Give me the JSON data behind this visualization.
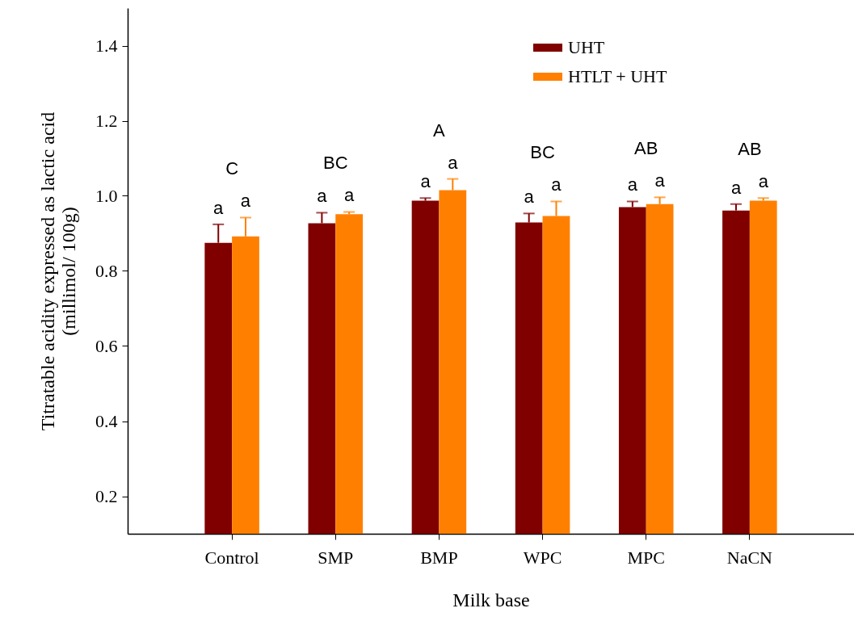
{
  "chart_data": {
    "type": "bar",
    "xlabel": "Milk base",
    "ylabel": "Titratable acidity expressed as lactic acid\n(millimol/ 100g)",
    "categories": [
      "Control",
      "SMP",
      "BMP",
      "WPC",
      "MPC",
      "NaCN"
    ],
    "series": [
      {
        "name": "UHT",
        "color": "#800000",
        "values": [
          0.875,
          0.927,
          0.987,
          0.929,
          0.97,
          0.961
        ],
        "errors": [
          [
            0.875,
            0.924
          ],
          [
            0.927,
            0.955
          ],
          [
            0.987,
            0.994
          ],
          [
            0.929,
            0.953
          ],
          [
            0.97,
            0.985
          ],
          [
            0.961,
            0.978
          ]
        ],
        "value_labels": [
          "a",
          "a",
          "a",
          "a",
          "a",
          "a"
        ]
      },
      {
        "name": "HTLT + UHT",
        "color": "#ff8000",
        "values": [
          0.892,
          0.951,
          1.015,
          0.946,
          0.978,
          0.987
        ],
        "errors": [
          [
            0.892,
            0.942
          ],
          [
            0.951,
            0.957
          ],
          [
            1.015,
            1.045
          ],
          [
            0.946,
            0.985
          ],
          [
            0.978,
            0.996
          ],
          [
            0.987,
            0.994
          ]
        ],
        "value_labels": [
          "a",
          "a",
          "a",
          "a",
          "a",
          "a"
        ]
      }
    ],
    "annotations": [
      "C",
      "BC",
      "A",
      "BC",
      "AB",
      "AB"
    ],
    "ylim": [
      0.1,
      1.5
    ],
    "yticks": [
      0.2,
      0.4,
      0.6,
      0.8,
      {
        "value": 1.0,
        "label": "1.0"
      },
      1.2,
      1.4
    ],
    "legend": "top right"
  }
}
